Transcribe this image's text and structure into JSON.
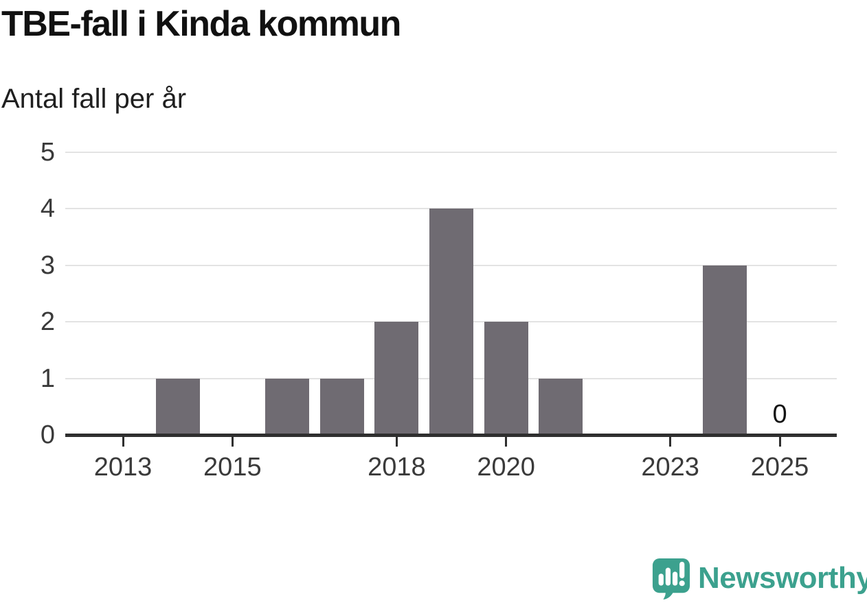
{
  "chart": {
    "title": "TBE-fall i Kinda kommun",
    "subtitle": "Antal fall per år"
  },
  "chart_data": {
    "type": "bar",
    "categories": [
      "2013",
      "2014",
      "2015",
      "2016",
      "2017",
      "2018",
      "2019",
      "2020",
      "2021",
      "2022",
      "2023",
      "2024",
      "2025"
    ],
    "values": [
      0,
      1,
      0,
      1,
      1,
      2,
      4,
      2,
      1,
      0,
      0,
      3,
      0
    ],
    "title": "TBE-fall i Kinda kommun",
    "subtitle": "Antal fall per år",
    "xlabel": "",
    "ylabel": "Antal fall per år",
    "ylim": [
      0,
      5
    ],
    "yticks": [
      0,
      1,
      2,
      3,
      4,
      5
    ],
    "xtick_labels": [
      "2013",
      "2015",
      "2018",
      "2020",
      "2023",
      "2025"
    ],
    "grid": "horizontal",
    "legend": "none",
    "annotations": [
      {
        "category": "2025",
        "text": "0"
      }
    ]
  },
  "style": {
    "background": "#FFFFFF",
    "bar_color": "#6F6B72",
    "axis_color": "#2F2F2F",
    "grid_color": "#E3E3E3",
    "tick_label_color": "#3A3A3A",
    "title_color": "#111111",
    "subtitle_color": "#1F1F1F",
    "annotation_color": "#141414",
    "brand_color": "#3CA18E"
  },
  "footer": {
    "brand": "Newsworthy"
  }
}
